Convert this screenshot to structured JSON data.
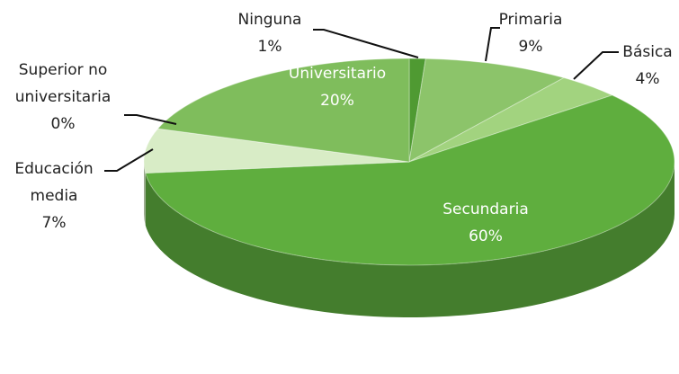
{
  "chart_data": {
    "type": "pie3d",
    "categories": [
      "Ninguna",
      "Primaria",
      "Básica",
      "Secundaria",
      "Educación media",
      "Superior no universitaria",
      "Universitario"
    ],
    "values": [
      1,
      9,
      4,
      60,
      7,
      0,
      20
    ],
    "value_labels": [
      "1%",
      "9%",
      "4%",
      "60%",
      "7%",
      "0%",
      "20%"
    ],
    "colors": [
      "#4f9a32",
      "#8cc46a",
      "#a2d37f",
      "#5fae3e",
      "#d8ecc6",
      "#c3e2aa",
      "#7fbd5c"
    ]
  }
}
